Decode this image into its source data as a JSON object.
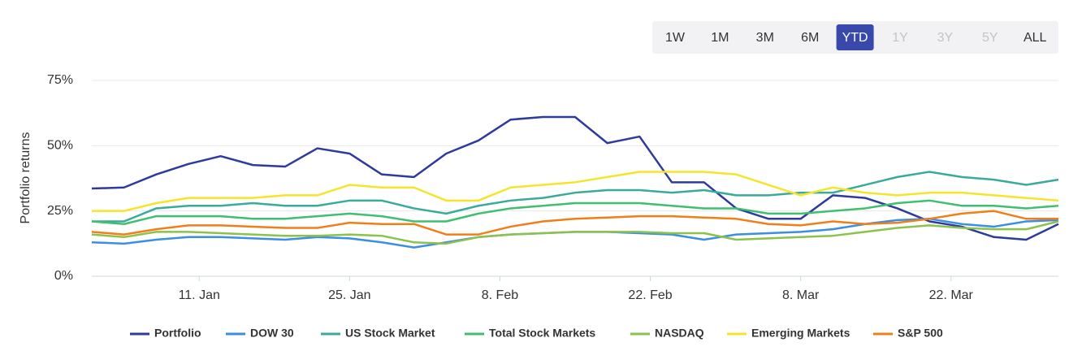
{
  "range_selector": {
    "buttons": [
      "1W",
      "1M",
      "3M",
      "6M",
      "YTD",
      "1Y",
      "3Y",
      "5Y",
      "ALL"
    ],
    "active": "YTD",
    "disabled": [
      "1Y",
      "3Y",
      "5Y"
    ]
  },
  "chart_data": {
    "type": "line",
    "y_label": "Portfolio returns",
    "x": [
      1,
      4,
      7,
      10,
      13,
      16,
      19,
      22,
      25,
      28,
      31,
      34,
      37,
      40,
      43,
      46,
      49,
      52,
      55,
      58,
      61,
      64,
      67,
      70,
      73,
      76,
      79,
      82,
      85,
      88,
      91
    ],
    "xlim": [
      1,
      91
    ],
    "xticks": [
      {
        "value": 11,
        "label": "11. Jan"
      },
      {
        "value": 25,
        "label": "25. Jan"
      },
      {
        "value": 39,
        "label": "8. Feb"
      },
      {
        "value": 53,
        "label": "22. Feb"
      },
      {
        "value": 67,
        "label": "8. Mar"
      },
      {
        "value": 81,
        "label": "22. Mar"
      }
    ],
    "ylim": [
      0,
      75
    ],
    "yticks": [
      {
        "value": 0,
        "label": "0%"
      },
      {
        "value": 25,
        "label": "25%"
      },
      {
        "value": 50,
        "label": "50%"
      },
      {
        "value": 75,
        "label": "75%"
      }
    ],
    "grid": true,
    "legend": "bottom",
    "series": [
      {
        "name": "Portfolio",
        "color": "#2e3a9c",
        "values": [
          33.6,
          34,
          39,
          43,
          46,
          42.6,
          42,
          49,
          47,
          39,
          38,
          47,
          52,
          60,
          61,
          61,
          51,
          53.5,
          36,
          36,
          26,
          22,
          22,
          31,
          30,
          26,
          21,
          19,
          15,
          14,
          20
        ]
      },
      {
        "name": "DOW 30",
        "color": "#3a8ee6",
        "values": [
          13,
          12.5,
          14,
          15,
          15,
          14.5,
          14,
          15,
          14.5,
          13,
          11,
          13,
          15,
          16,
          16.5,
          17,
          17,
          16.5,
          16,
          14,
          16,
          16.5,
          17,
          18,
          20,
          21.5,
          22,
          20,
          19,
          21,
          21.5
        ]
      },
      {
        "name": "US Stock Market",
        "color": "#3aab9a",
        "values": [
          21,
          21,
          26,
          27,
          27,
          28,
          27,
          27,
          29,
          29,
          26,
          24,
          27,
          29,
          30,
          32,
          33,
          33,
          32,
          33,
          31,
          31,
          32,
          32,
          35,
          38,
          40,
          38,
          37,
          35,
          37
        ]
      },
      {
        "name": "Total Stock Markets",
        "color": "#3fbf6f",
        "values": [
          21,
          20,
          23,
          23,
          23,
          22,
          22,
          23,
          24,
          23,
          21,
          21,
          24,
          26,
          27,
          28,
          28,
          28,
          27,
          26,
          26,
          24,
          24,
          25,
          26,
          28,
          29,
          27,
          27,
          26,
          27
        ]
      },
      {
        "name": "NASDAQ",
        "color": "#8bc34a",
        "values": [
          16,
          15,
          17,
          17,
          16.5,
          16,
          15.5,
          15.5,
          16,
          15.5,
          13,
          12.5,
          15,
          16,
          16.5,
          17,
          17,
          17,
          16.5,
          16.5,
          14,
          14.5,
          15,
          15.5,
          17,
          18.5,
          19.5,
          18.5,
          18,
          18,
          21
        ]
      },
      {
        "name": "Emerging Markets",
        "color": "#f5e52a",
        "values": [
          25,
          25,
          28,
          30,
          30,
          30,
          31,
          31,
          35,
          34,
          34,
          29,
          29,
          34,
          35,
          36,
          38,
          40,
          40,
          40,
          39,
          35,
          31,
          34,
          32,
          31,
          32,
          32,
          31,
          30,
          29
        ]
      },
      {
        "name": "S&P 500",
        "color": "#f07f1a",
        "values": [
          17,
          16,
          18,
          19.5,
          19.5,
          19,
          18.5,
          18.5,
          20.5,
          20,
          20,
          16,
          16,
          19,
          21,
          22,
          22.5,
          23,
          23,
          22.5,
          22,
          20,
          19.5,
          21,
          20,
          20.5,
          22,
          24,
          25,
          22,
          22
        ]
      }
    ]
  }
}
